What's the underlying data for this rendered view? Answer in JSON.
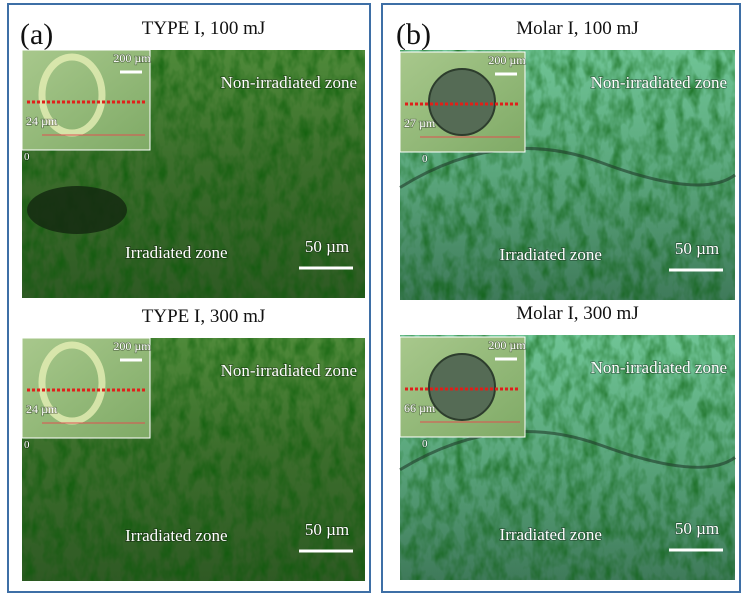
{
  "panels": [
    {
      "label": "(a)",
      "images": [
        {
          "title": "TYPE I, 100 mJ",
          "inset_scale": "200 µm",
          "inset_depth": "24 µm",
          "inset_zero": "0",
          "upper_zone": "Non-irradiated zone",
          "lower_zone": "Irradiated zone",
          "scale_bar": "50 µm"
        },
        {
          "title": "TYPE I, 300 mJ",
          "inset_scale": "200 µm",
          "inset_depth": "24 µm",
          "inset_zero": "0",
          "upper_zone": "Non-irradiated zone",
          "lower_zone": "Irradiated zone",
          "scale_bar": "50 µm"
        }
      ]
    },
    {
      "label": "(b)",
      "images": [
        {
          "title": "Molar I, 100 mJ",
          "inset_scale": "200 µm",
          "inset_depth": "27 µm",
          "inset_zero": "0",
          "upper_zone": "Non-irradiated zone",
          "lower_zone": "Irradiated zone",
          "scale_bar": "50 µm"
        },
        {
          "title": "Molar I, 300 mJ",
          "inset_scale": "200 µm",
          "inset_depth": "66 µm",
          "inset_zero": "0",
          "upper_zone": "Non-irradiated zone",
          "lower_zone": "Irradiated zone",
          "scale_bar": "50 µm"
        }
      ]
    }
  ]
}
